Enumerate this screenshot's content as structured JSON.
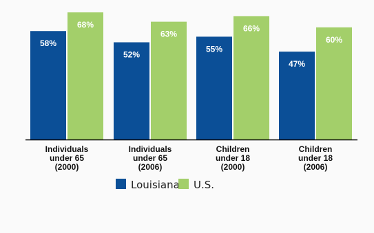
{
  "chart_data": {
    "type": "bar",
    "categories": [
      [
        "Individuals",
        "under 65",
        "(2000)"
      ],
      [
        "Individuals",
        "under 65",
        "(2006)"
      ],
      [
        "Children",
        "under 18",
        "(2000)"
      ],
      [
        "Children",
        "under 18",
        "(2006)"
      ]
    ],
    "series": [
      {
        "name": "Louisiana",
        "values": [
          58,
          52,
          55,
          47
        ],
        "labels": [
          "58%",
          "52%",
          "55%",
          "47%"
        ],
        "color": "#0b4f97"
      },
      {
        "name": "U.S.",
        "values": [
          68,
          63,
          66,
          60
        ],
        "labels": [
          "68%",
          "63%",
          "66%",
          "60%"
        ],
        "color": "#a3cf6a"
      }
    ],
    "ylim": [
      0,
      70
    ],
    "grid": false,
    "legend_position": "bottom"
  }
}
